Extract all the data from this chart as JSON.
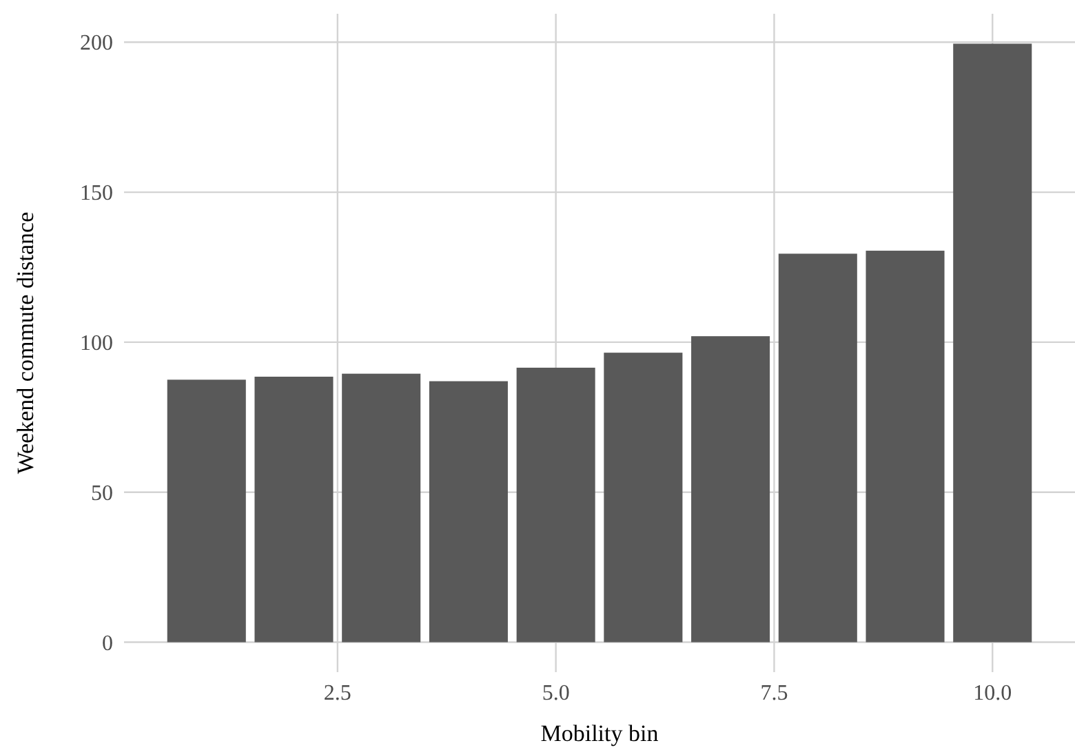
{
  "chart_data": {
    "type": "bar",
    "xlabel": "Mobility bin",
    "ylabel": "Weekend commute distance",
    "x": [
      1,
      2,
      3,
      4,
      5,
      6,
      7,
      8,
      9,
      10
    ],
    "values": [
      87.5,
      88.5,
      89.5,
      87,
      91.5,
      96.5,
      102,
      129.5,
      130.5,
      199.5
    ],
    "color": "#595959",
    "xlim": [
      0.055,
      10.945
    ],
    "xticks": [
      2.5,
      {
        "value": 5,
        "label": "5.0"
      },
      7.5,
      {
        "value": 10,
        "label": "10.0"
      }
    ],
    "ylim": [
      -9.975,
      209.475
    ],
    "yticks": [
      0,
      50,
      100,
      150,
      200
    ],
    "grid": true
  }
}
